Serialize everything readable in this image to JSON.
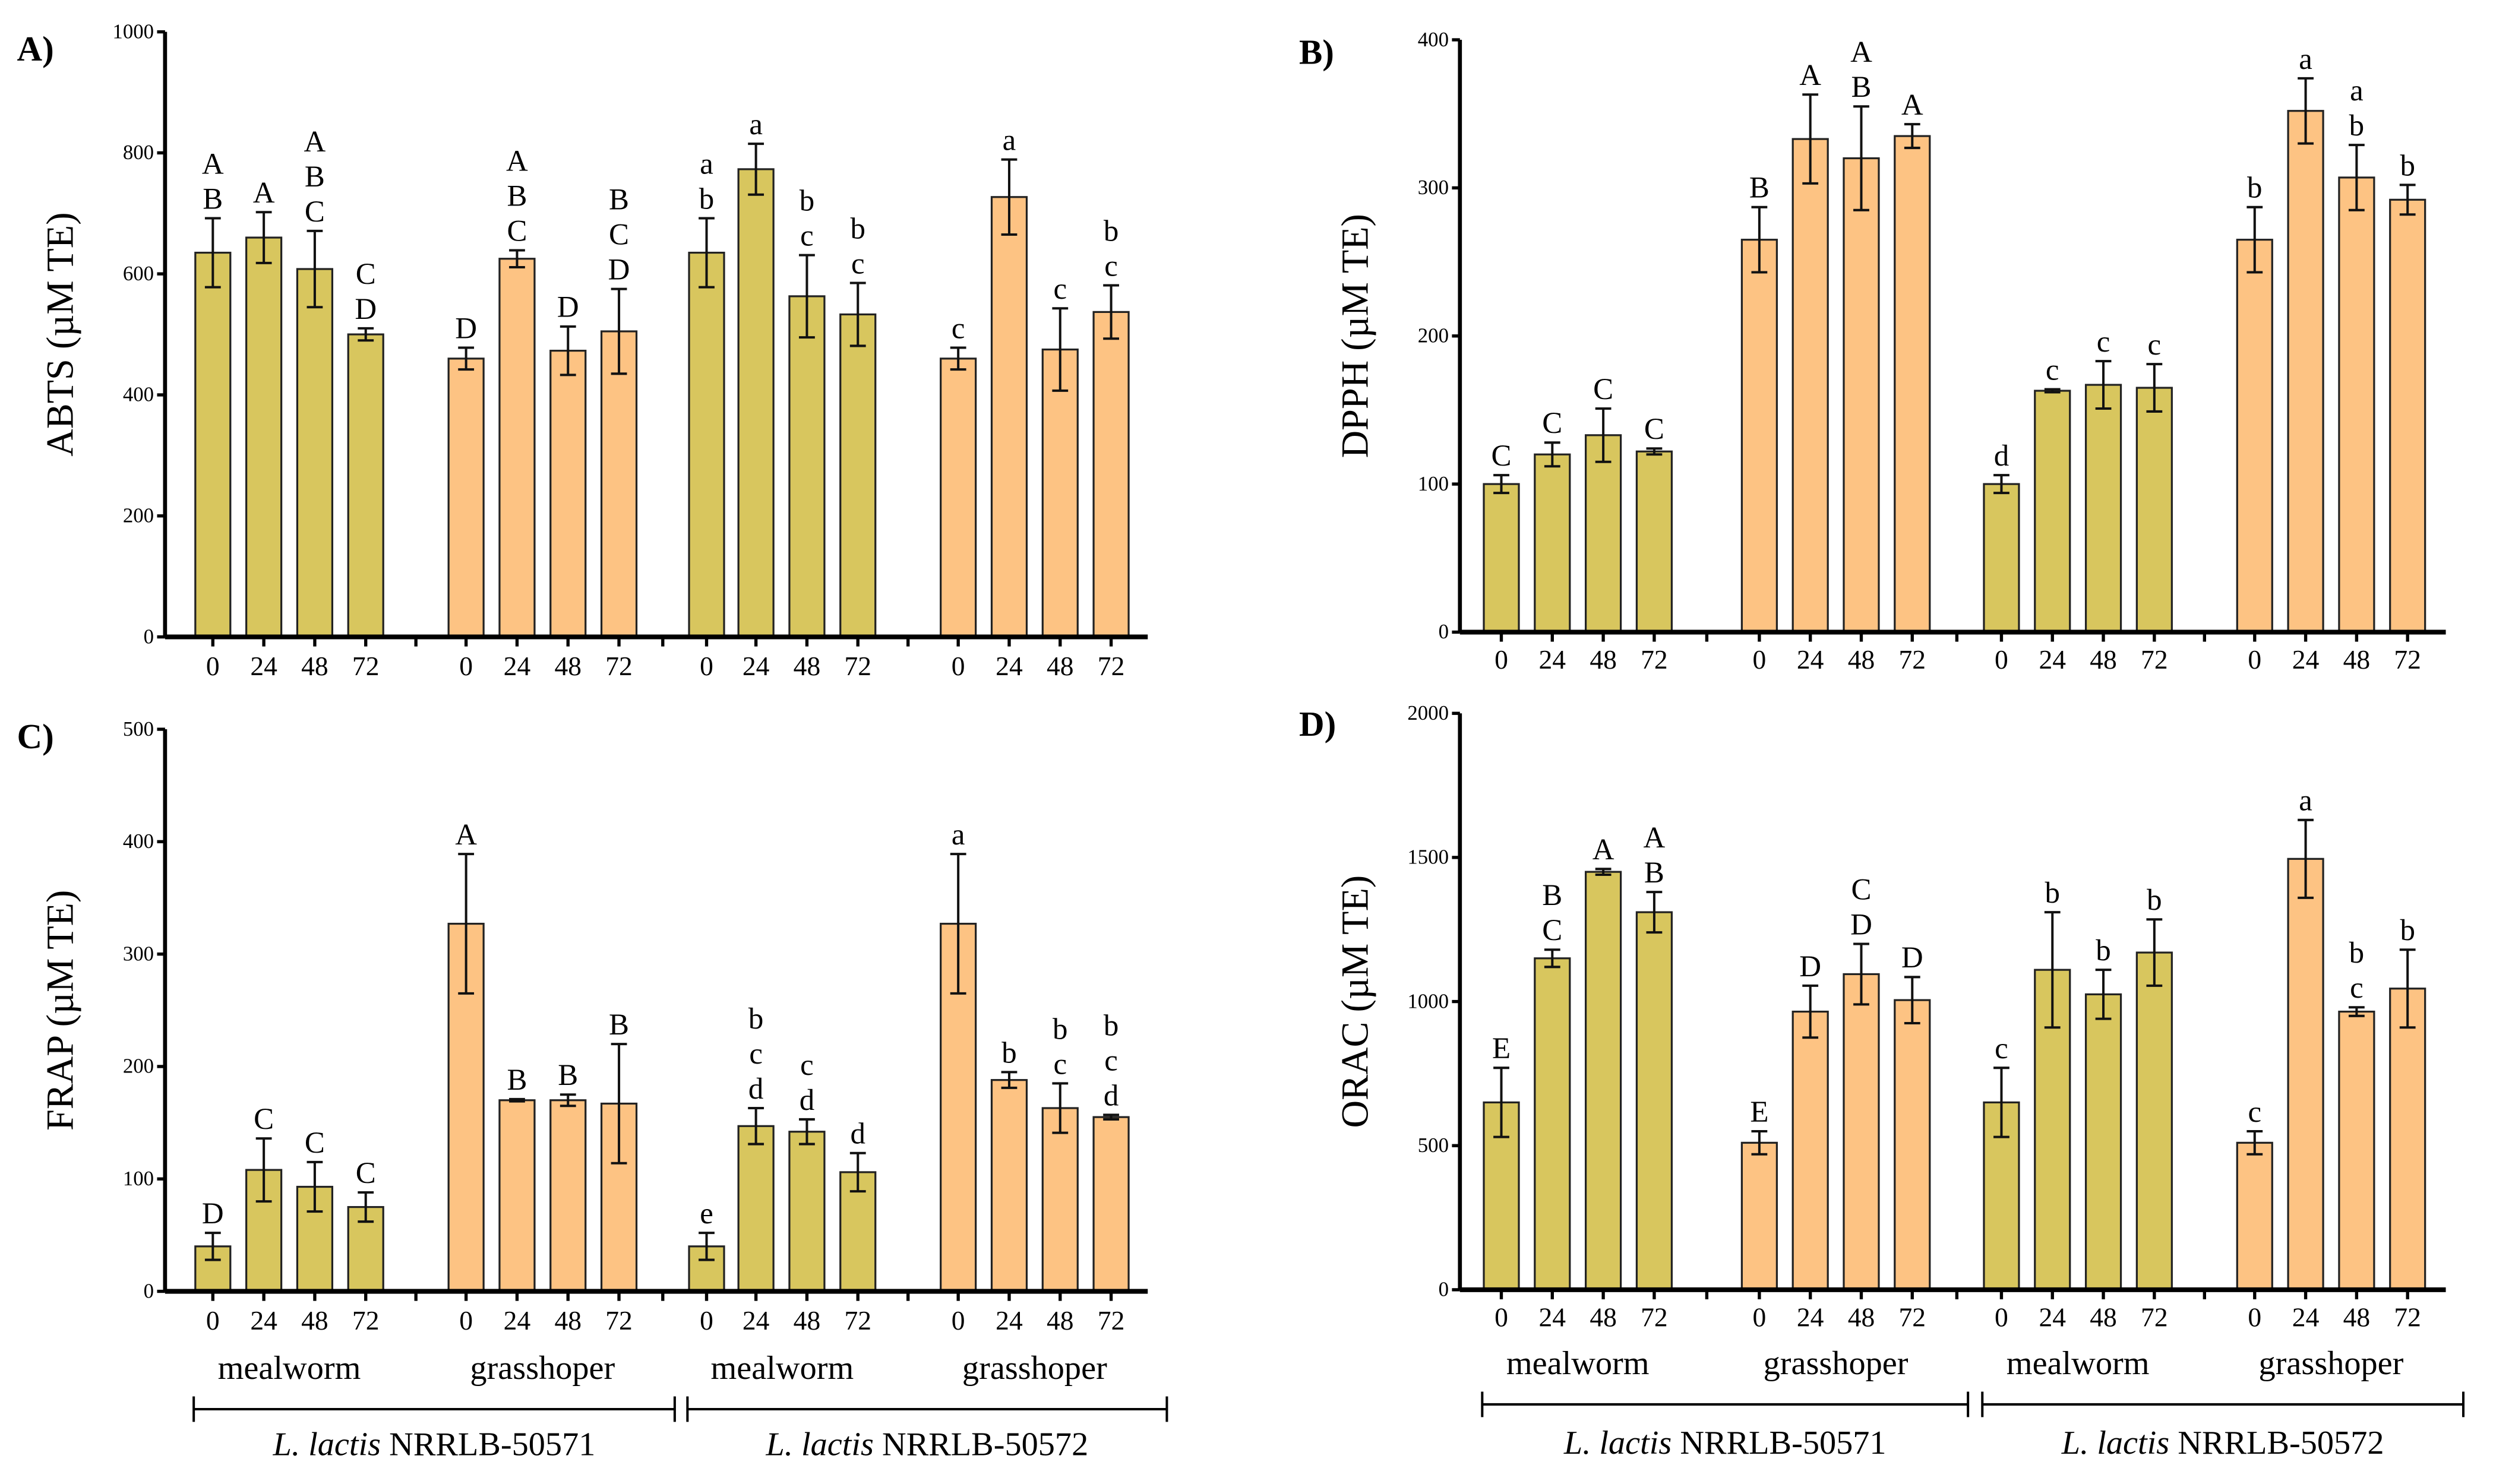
{
  "colors": {
    "mealworm": "#d8c65e",
    "grasshopper": "#fdc383",
    "axis": "#000000"
  },
  "x_tick_labels": [
    "0",
    "24",
    "48",
    "72"
  ],
  "group_labels": [
    "mealworm",
    "grasshoper",
    "mealworm",
    "grasshoper"
  ],
  "strain_labels": [
    {
      "italic": "L. lactis",
      "rest": " NRRLB-50571"
    },
    {
      "italic": "L. lactis",
      "rest": " NRRLB-50572"
    }
  ],
  "chart_data": [
    {
      "type": "bar",
      "panel": "A)",
      "ylabel": "ABTS (µM TE)",
      "ylim": [
        0,
        1000
      ],
      "yticks": [
        "0",
        "200",
        "400",
        "600",
        "800",
        "1000"
      ],
      "bar_groups": [
        "mealworm",
        "grasshopper",
        "mealworm",
        "grasshopper"
      ],
      "values": [
        635,
        660,
        608,
        500,
        460,
        625,
        473,
        505,
        635,
        773,
        563,
        533,
        460,
        727,
        475,
        537
      ],
      "errors": [
        57,
        42,
        63,
        10,
        18,
        14,
        40,
        70,
        57,
        42,
        68,
        52,
        18,
        62,
        68,
        44
      ],
      "letters": [
        "A B",
        "A",
        "A B C",
        "C D",
        "D",
        "A B C",
        "D",
        "B C D",
        "a b",
        "a",
        "b c",
        "b c",
        "c",
        "a",
        "c",
        "b c"
      ]
    },
    {
      "type": "bar",
      "panel": "B)",
      "ylabel": "DPPH (µM TE)",
      "ylim": [
        0,
        400
      ],
      "yticks": [
        "0",
        "100",
        "200",
        "300",
        "400"
      ],
      "bar_groups": [
        "mealworm",
        "grasshopper",
        "mealworm",
        "grasshopper"
      ],
      "values": [
        100,
        120,
        133,
        122,
        265,
        333,
        320,
        335,
        100,
        163,
        167,
        165,
        265,
        352,
        307,
        292
      ],
      "errors": [
        6,
        8,
        18,
        2,
        22,
        30,
        35,
        8,
        6,
        1,
        16,
        16,
        22,
        22,
        22,
        10
      ],
      "letters": [
        "C",
        "C",
        "C",
        "C",
        "B",
        "A",
        "A B",
        "A",
        "d",
        "c",
        "c",
        "c",
        "b",
        "a",
        "a b",
        "b"
      ]
    },
    {
      "type": "bar",
      "panel": "C)",
      "ylabel": "FRAP (µM TE)",
      "ylim": [
        0,
        500
      ],
      "yticks": [
        "0",
        "100",
        "200",
        "300",
        "400",
        "500"
      ],
      "bar_groups": [
        "mealworm",
        "grasshopper",
        "mealworm",
        "grasshopper"
      ],
      "values": [
        40,
        108,
        93,
        75,
        327,
        170,
        170,
        167,
        40,
        147,
        142,
        106,
        327,
        188,
        163,
        155
      ],
      "errors": [
        12,
        28,
        22,
        13,
        62,
        1,
        5,
        53,
        12,
        16,
        11,
        17,
        62,
        7,
        22,
        2
      ],
      "letters": [
        "D",
        "C",
        "C",
        "C",
        "A",
        "B",
        "B",
        "B",
        "e",
        "b c d",
        "c d",
        "d",
        "a",
        "b",
        "b c",
        "b c d"
      ]
    },
    {
      "type": "bar",
      "panel": "D)",
      "ylabel": "ORAC (µM TE)",
      "ylim": [
        0,
        2000
      ],
      "yticks": [
        "0",
        "500",
        "1000",
        "1500",
        "2000"
      ],
      "bar_groups": [
        "mealworm",
        "grasshopper",
        "mealworm",
        "grasshopper"
      ],
      "values": [
        650,
        1150,
        1450,
        1310,
        510,
        965,
        1095,
        1005,
        650,
        1110,
        1025,
        1170,
        510,
        1495,
        965,
        1045
      ],
      "errors": [
        120,
        30,
        10,
        70,
        40,
        90,
        105,
        80,
        120,
        200,
        85,
        115,
        40,
        135,
        15,
        135
      ],
      "letters": [
        "E",
        "B C",
        "A",
        "A B",
        "E",
        "D",
        "C D",
        "D",
        "c",
        "b",
        "b",
        "b",
        "c",
        "a",
        "b c",
        "b"
      ]
    }
  ]
}
